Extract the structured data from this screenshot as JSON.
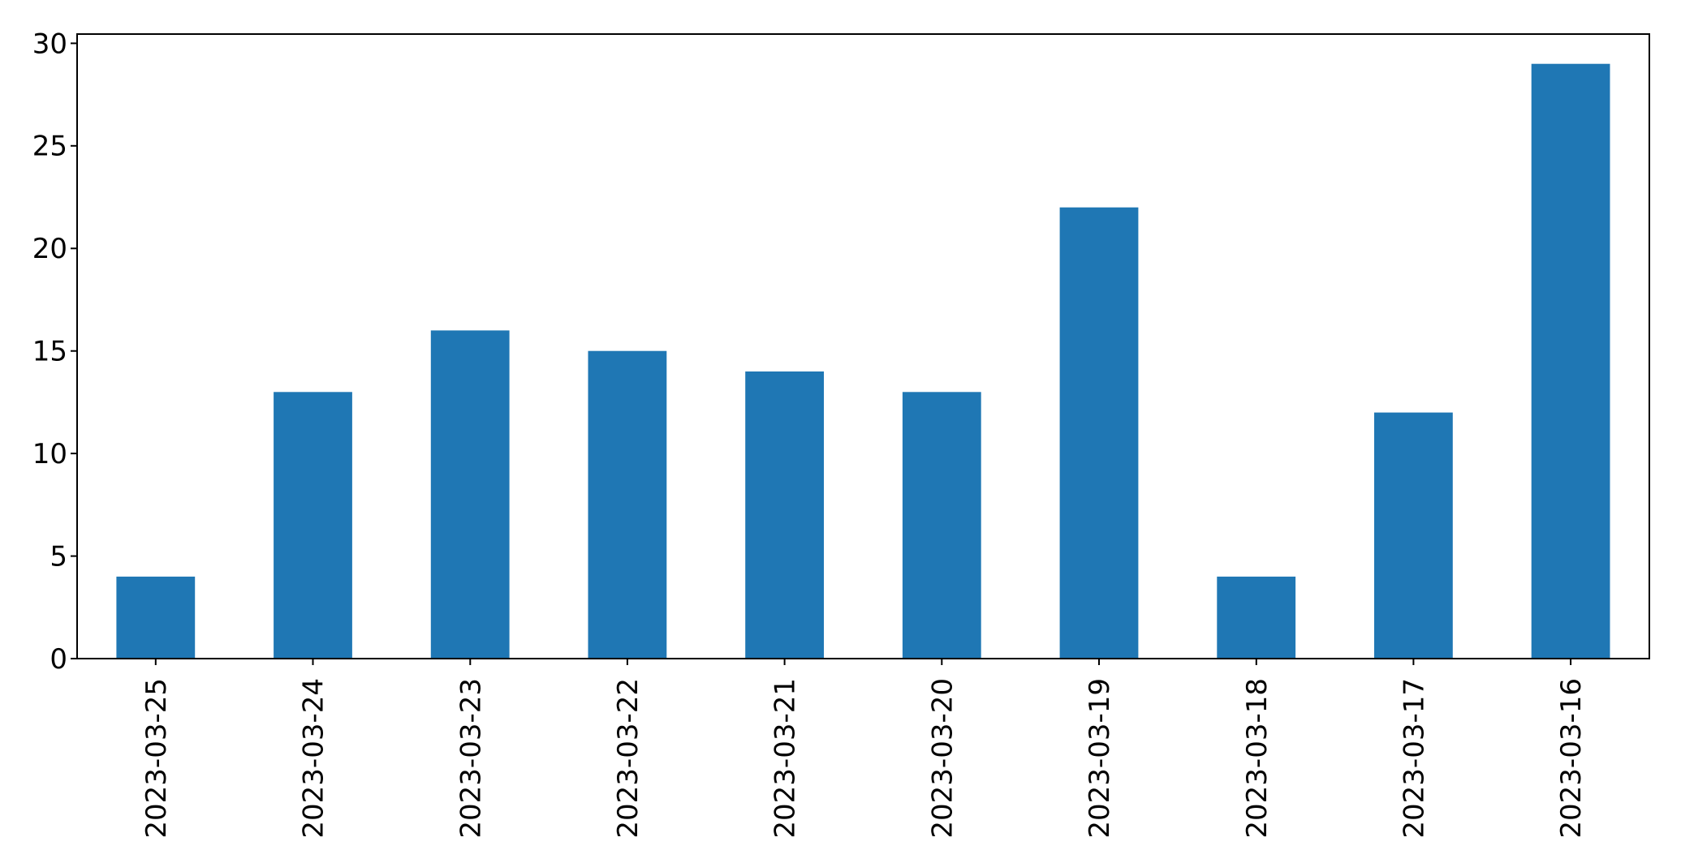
{
  "figure": {
    "background": "#ffffff"
  },
  "chart_data": {
    "type": "bar",
    "title": "",
    "subtitle": "",
    "xlabel": "",
    "ylabel": "",
    "categories": [
      "2023-03-25",
      "2023-03-24",
      "2023-03-23",
      "2023-03-22",
      "2023-03-21",
      "2023-03-20",
      "2023-03-19",
      "2023-03-18",
      "2023-03-17",
      "2023-03-16"
    ],
    "values": [
      4,
      13,
      16,
      15,
      14,
      13,
      22,
      4,
      12,
      29
    ],
    "yticks": [
      0,
      5,
      10,
      15,
      20,
      25,
      30
    ],
    "ylim": [
      0,
      30.45
    ],
    "grid": false,
    "legend": null,
    "legend_position": "none",
    "bar_color": "#1f77b4",
    "axis_color": "#000000",
    "text_color": "#000000",
    "bar_width_fraction": 0.5,
    "x_tick_label_rotation": 90
  }
}
